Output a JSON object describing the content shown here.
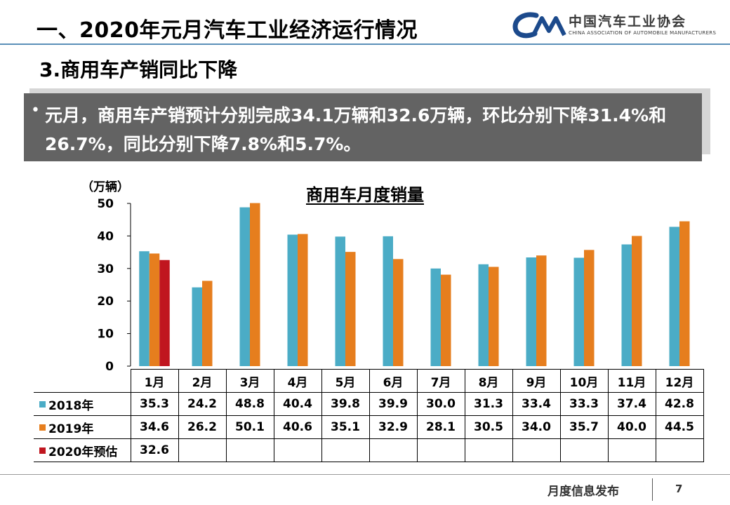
{
  "slide": {
    "title": "一、2020年元月汽车工业经济运行情况",
    "subtitle": "3.商用车产销同比下降",
    "summary_bullet": "•",
    "summary": "元月，商用车产销预计分别完成34.1万辆和32.6万辆，环比分别下降31.4%和26.7%，同比分别下降7.8%和5.7%。",
    "logo_cn": "中国汽车工业协会",
    "logo_en": "CHINA ASSOCIATION OF AUTOMOBILE MANUFACTURERS",
    "footer": "月度信息发布",
    "page_number": "7"
  },
  "chart_data": {
    "type": "bar",
    "title": "商用车月度销量",
    "ylabel": "（万辆）",
    "ylim": [
      0,
      50
    ],
    "yticks": [
      0,
      10,
      20,
      30,
      40,
      50
    ],
    "categories": [
      "1月",
      "2月",
      "3月",
      "4月",
      "5月",
      "6月",
      "7月",
      "8月",
      "9月",
      "10月",
      "11月",
      "12月"
    ],
    "series": [
      {
        "name": "2018年",
        "color": "#4bacc6",
        "values": [
          35.3,
          24.2,
          48.8,
          40.4,
          39.8,
          39.9,
          30.0,
          31.3,
          33.4,
          33.3,
          37.4,
          42.8
        ],
        "labels": [
          "35.3",
          "24.2",
          "48.8",
          "40.4",
          "39.8",
          "39.9",
          "30.0",
          "31.3",
          "33.4",
          "33.3",
          "37.4",
          "42.8"
        ]
      },
      {
        "name": "2019年",
        "color": "#e67e1e",
        "values": [
          34.6,
          26.2,
          50.1,
          40.6,
          35.1,
          32.9,
          28.1,
          30.5,
          34.0,
          35.7,
          40.0,
          44.5
        ],
        "labels": [
          "34.6",
          "26.2",
          "50.1",
          "40.6",
          "35.1",
          "32.9",
          "28.1",
          "30.5",
          "34.0",
          "35.7",
          "40.0",
          "44.5"
        ]
      },
      {
        "name": "2020年预估",
        "color": "#c0161f",
        "values": [
          32.6,
          null,
          null,
          null,
          null,
          null,
          null,
          null,
          null,
          null,
          null,
          null
        ],
        "labels": [
          "32.6",
          "",
          "",
          "",
          "",
          "",
          "",
          "",
          "",
          "",
          "",
          ""
        ]
      }
    ],
    "legend": "table-left",
    "grid": false
  }
}
